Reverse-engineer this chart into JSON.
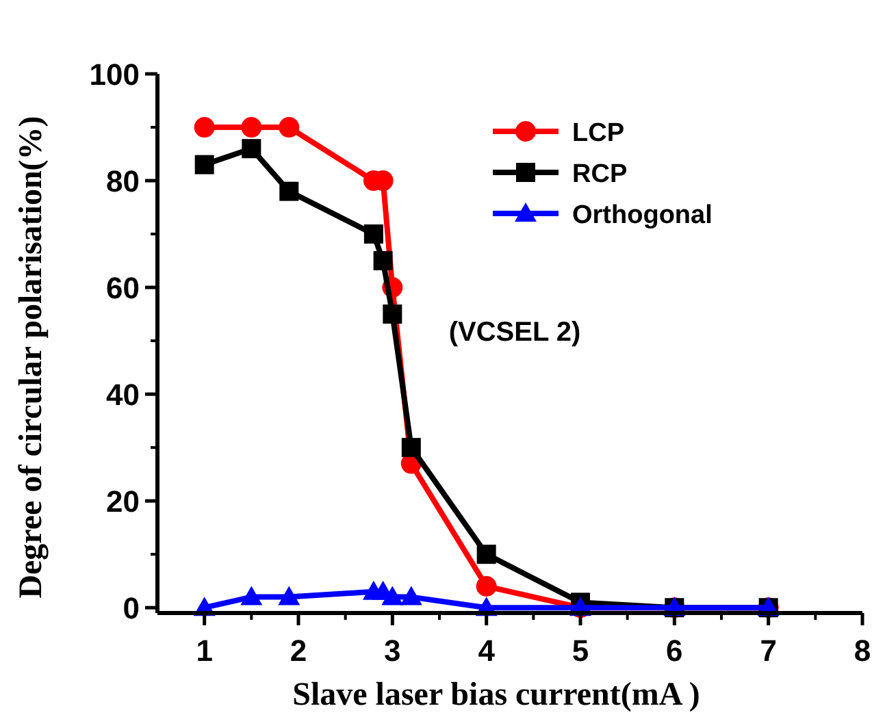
{
  "chart_data": {
    "type": "line",
    "xlabel": "Slave laser bias current(mA )",
    "ylabel": "Degree of circular polarisation(%)",
    "xlim": [
      0.5,
      8
    ],
    "xticks": [
      1,
      2,
      3,
      4,
      5,
      6,
      7,
      8
    ],
    "ylim": [
      -1,
      100
    ],
    "yticks": [
      0,
      20,
      40,
      60,
      80,
      100
    ],
    "legend": "top right",
    "annotations": [
      "(VCSEL 2)"
    ],
    "series": [
      {
        "name": "LCP",
        "color": "#ff0000",
        "marker": "circle",
        "x": [
          1,
          1.5,
          1.9,
          2.8,
          2.9,
          3,
          3.2,
          4,
          5,
          6,
          7
        ],
        "values": [
          90,
          90,
          90,
          80,
          80,
          60,
          27,
          4,
          0,
          0,
          0
        ]
      },
      {
        "name": "RCP",
        "color": "#000000",
        "marker": "square",
        "x": [
          1,
          1.5,
          1.9,
          2.8,
          2.9,
          3,
          3.2,
          4,
          5,
          6,
          7
        ],
        "values": [
          83,
          86,
          78,
          70,
          65,
          55,
          30,
          10,
          1,
          0,
          0
        ]
      },
      {
        "name": "Orthogonal",
        "color": "#0000ff",
        "marker": "triangle",
        "x": [
          1,
          1.5,
          1.9,
          2.8,
          2.9,
          3,
          3.2,
          4,
          5,
          6,
          7
        ],
        "values": [
          0,
          2,
          2,
          3,
          3,
          2,
          2,
          0,
          0,
          0,
          0
        ]
      }
    ]
  }
}
